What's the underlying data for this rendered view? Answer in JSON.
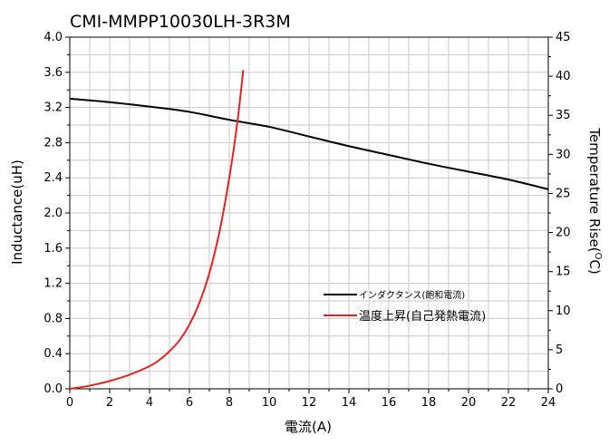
{
  "chart_data": {
    "type": "line",
    "title": "CMI-MMPP10030LH-3R3M",
    "xlabel": "電流(A)",
    "ylabel_left": "Inductance(uH)",
    "ylabel_right_main": "Temperature Rise(",
    "ylabel_right_sup": "O",
    "ylabel_right_end": "C)",
    "xlim": [
      0,
      24
    ],
    "ylim_left": [
      0.0,
      4.0
    ],
    "ylim_right": [
      0,
      45
    ],
    "x_ticks": [
      "0",
      "2",
      "4",
      "6",
      "8",
      "10",
      "12",
      "14",
      "16",
      "18",
      "20",
      "22",
      "24"
    ],
    "y_left_ticks": [
      "0.0",
      "0.4",
      "0.8",
      "1.2",
      "1.6",
      "2.0",
      "2.4",
      "2.8",
      "3.2",
      "3.6",
      "4.0"
    ],
    "y_right_ticks": [
      "0",
      "5",
      "10",
      "15",
      "20",
      "25",
      "30",
      "35",
      "40",
      "45"
    ],
    "grid": true,
    "legend_position": "lower-right",
    "series": [
      {
        "name": "インダクタンス(飽和電流)",
        "axis": "left",
        "color": "#000000",
        "x": [
          0,
          2,
          4,
          6,
          8,
          10,
          12,
          14,
          16,
          18,
          20,
          22,
          24
        ],
        "y": [
          3.3,
          3.26,
          3.21,
          3.15,
          3.06,
          2.98,
          2.87,
          2.76,
          2.66,
          2.56,
          2.47,
          2.38,
          2.27
        ]
      },
      {
        "name": "温度上昇(自己発熱電流)",
        "axis": "right",
        "color": "#e8231f",
        "x": [
          0,
          1,
          2,
          3,
          4,
          4.5,
          5,
          5.5,
          6,
          6.5,
          7,
          7.5,
          8,
          8.4,
          8.7
        ],
        "y": [
          0,
          0.4,
          1.0,
          1.8,
          2.9,
          3.7,
          4.8,
          6.2,
          8.2,
          11.0,
          14.8,
          20.0,
          27.0,
          34.0,
          40.8
        ]
      }
    ]
  }
}
